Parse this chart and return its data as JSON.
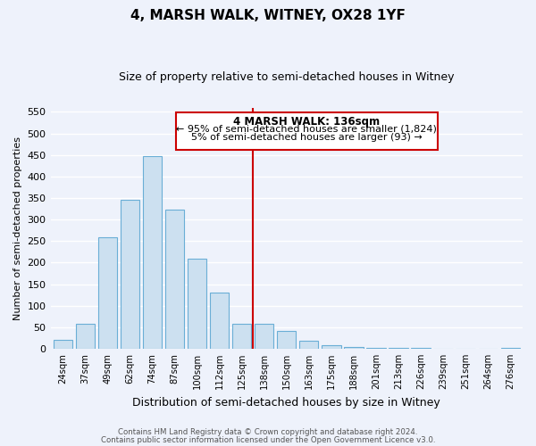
{
  "title": "4, MARSH WALK, WITNEY, OX28 1YF",
  "subtitle": "Size of property relative to semi-detached houses in Witney",
  "xlabel": "Distribution of semi-detached houses by size in Witney",
  "ylabel": "Number of semi-detached properties",
  "bar_labels": [
    "24sqm",
    "37sqm",
    "49sqm",
    "62sqm",
    "74sqm",
    "87sqm",
    "100sqm",
    "112sqm",
    "125sqm",
    "138sqm",
    "150sqm",
    "163sqm",
    "175sqm",
    "188sqm",
    "201sqm",
    "213sqm",
    "226sqm",
    "239sqm",
    "251sqm",
    "264sqm",
    "276sqm"
  ],
  "bar_values": [
    20,
    57,
    259,
    346,
    447,
    323,
    209,
    130,
    57,
    57,
    42,
    18,
    8,
    5,
    2,
    1,
    1,
    0,
    0,
    0,
    1
  ],
  "bar_color": "#cce0f0",
  "bar_edge_color": "#6aaed6",
  "marker_index": 9,
  "annotation_title": "4 MARSH WALK: 136sqm",
  "annotation_line1": "← 95% of semi-detached houses are smaller (1,824)",
  "annotation_line2": "5% of semi-detached houses are larger (93) →",
  "annotation_box_color": "#ffffff",
  "annotation_box_edge": "#cc0000",
  "marker_line_color": "#cc0000",
  "ylim": [
    0,
    560
  ],
  "yticks": [
    0,
    50,
    100,
    150,
    200,
    250,
    300,
    350,
    400,
    450,
    500,
    550
  ],
  "footer1": "Contains HM Land Registry data © Crown copyright and database right 2024.",
  "footer2": "Contains public sector information licensed under the Open Government Licence v3.0.",
  "background_color": "#eef2fb",
  "grid_color": "#ffffff"
}
